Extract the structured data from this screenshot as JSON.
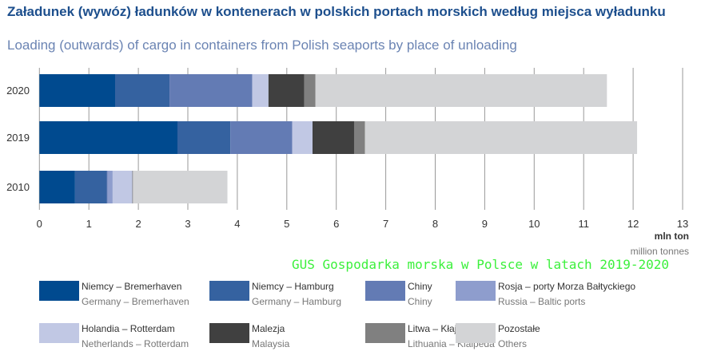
{
  "title": "Załadunek (wywóz) ładunków w kontenerach w polskich portach morskich według miejsca wyładunku",
  "subtitle": "Loading (outwards) of cargo in containers from Polish seaports by place of unloading",
  "watermark": "GUS Gospodarka morska w Polsce w latach 2019-2020",
  "chart_data": {
    "type": "bar",
    "orientation": "horizontal",
    "stacked": true,
    "categories": [
      "2020",
      "2019",
      "2010"
    ],
    "xlim": [
      0,
      13
    ],
    "xticks": [
      "0",
      "1",
      "2",
      "3",
      "4",
      "5",
      "6",
      "7",
      "8",
      "9",
      "10",
      "11",
      "12",
      "13"
    ],
    "xlabel": "mln ton",
    "xlabel_en": "million tonnes",
    "grid": true,
    "legend_position": "bottom",
    "series": [
      {
        "name": "Niemcy – Bremerhaven",
        "name_en": "Germany – Bremerhaven",
        "color": "#004a8f",
        "values": [
          1.53,
          2.79,
          0.72
        ]
      },
      {
        "name": "Niemcy – Hamburg",
        "name_en": "Germany – Hamburg",
        "color": "#3562a0",
        "values": [
          1.1,
          1.07,
          0.64
        ]
      },
      {
        "name": "Chiny",
        "name_en": "Chiny",
        "color": "#637bb4",
        "values": [
          1.67,
          1.25,
          0.02
        ]
      },
      {
        "name": "Rosja – porty Morza Bałtyckiego",
        "name_en": "Russia – Baltic ports",
        "color": "#8e9dcd",
        "values": [
          0,
          0,
          0.1
        ]
      },
      {
        "name": "Holandia – Rotterdam",
        "name_en": "Netherlands – Rotterdam",
        "color": "#c1c8e4",
        "values": [
          0.33,
          0.41,
          0.4
        ]
      },
      {
        "name": "Malezja",
        "name_en": "Malaysia",
        "color": "#404040",
        "values": [
          0.72,
          0.84,
          0.01
        ]
      },
      {
        "name": "Litwa – Kłajpeda",
        "name_en": "Lithuania – Klaipeda",
        "color": "#808080",
        "values": [
          0.23,
          0.22,
          0.0
        ]
      },
      {
        "name": "Pozostałe",
        "name_en": "Others",
        "color": "#d3d4d6",
        "values": [
          5.89,
          5.5,
          1.91
        ]
      }
    ]
  }
}
